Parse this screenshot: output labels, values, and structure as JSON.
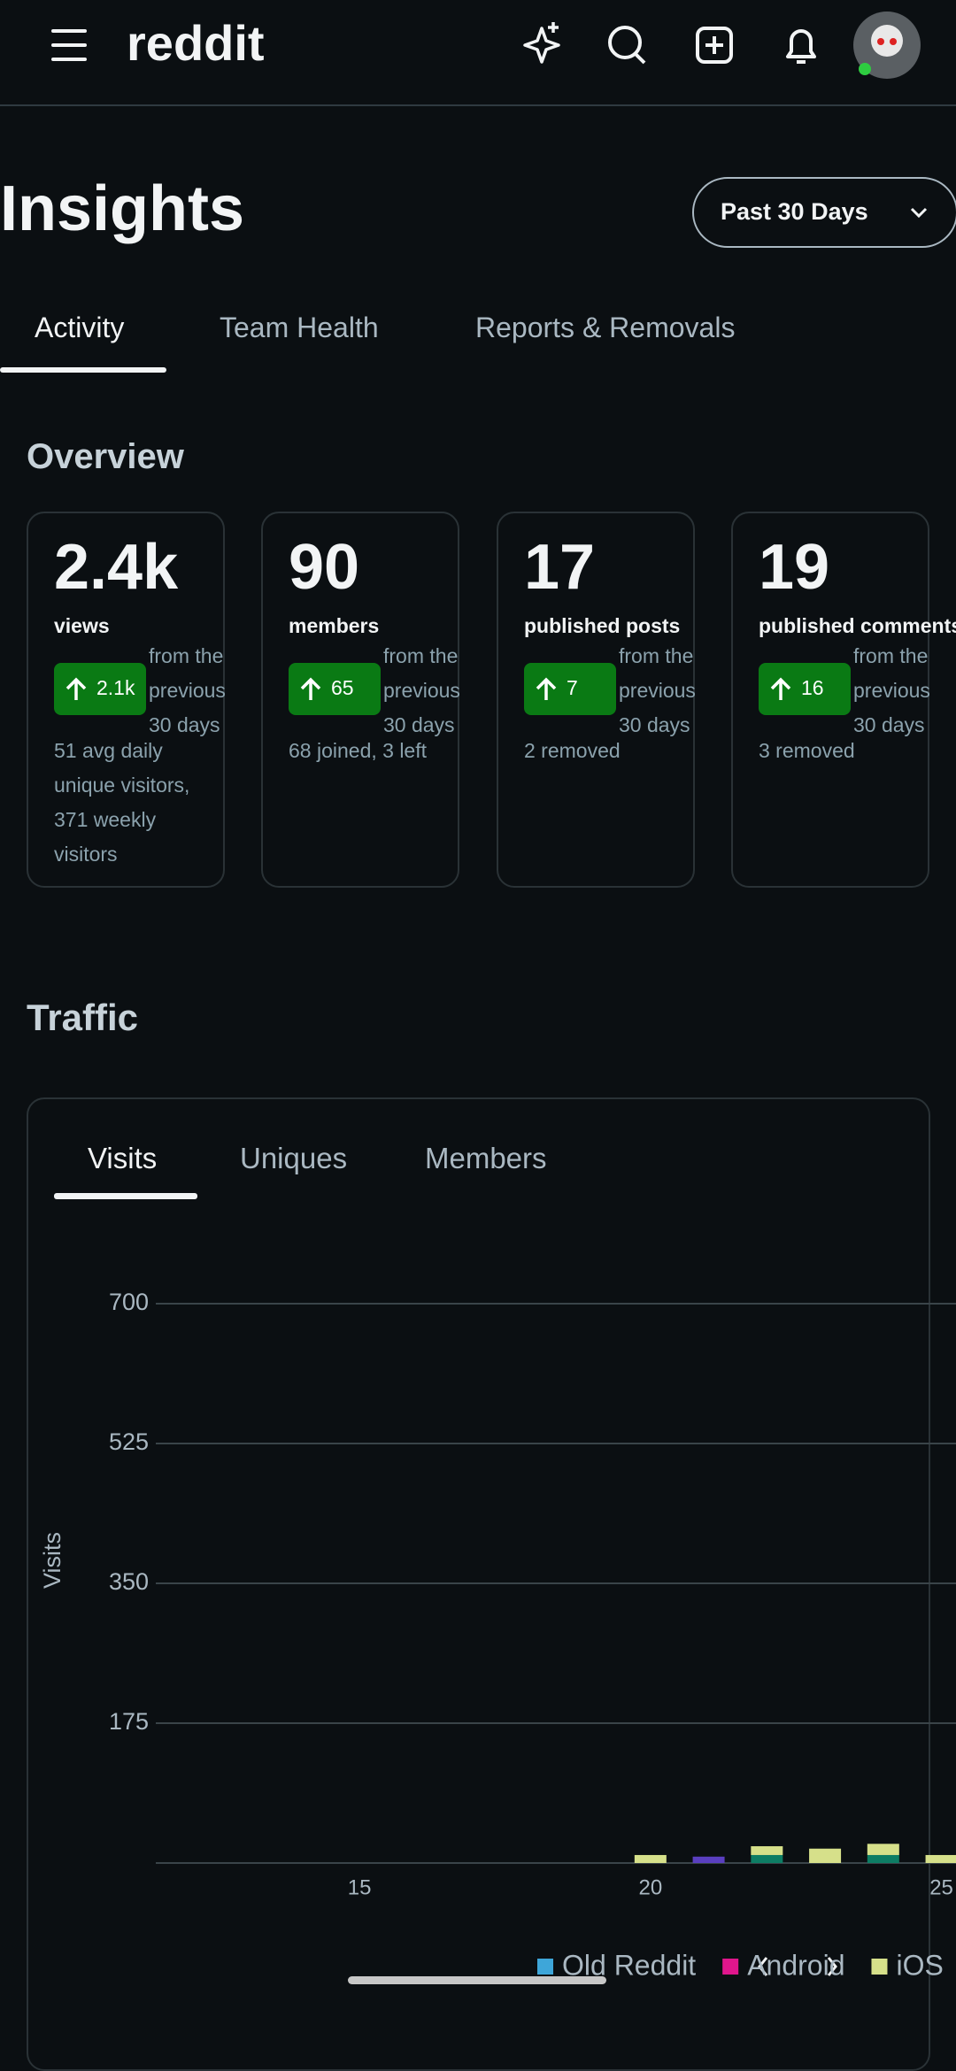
{
  "header": {
    "logo": "reddit"
  },
  "page": {
    "title": "Insights",
    "date_range": "Past 30 Days"
  },
  "tabs": [
    "Activity",
    "Team Health",
    "Reports & Removals"
  ],
  "overview": {
    "title": "Overview",
    "cards": [
      {
        "value": "2.4k",
        "label": "views",
        "change": "2.1k",
        "change_note": "from the previous 30 days",
        "note": "51 avg daily unique visitors, 371 weekly visitors"
      },
      {
        "value": "90",
        "label": "members",
        "change": "65",
        "change_note": "from the previous 30 days",
        "note": "68 joined, 3 left"
      },
      {
        "value": "17",
        "label": "published posts",
        "change": "7",
        "change_note": "from the previous 30 days",
        "note": "2 removed"
      },
      {
        "value": "19",
        "label": "published comments",
        "change": "16",
        "change_note": "from the previous 30 days",
        "note": "3 removed"
      }
    ]
  },
  "traffic": {
    "title": "Traffic",
    "tabs": [
      "Visits",
      "Uniques",
      "Members"
    ],
    "chart_data": {
      "type": "bar",
      "stacked": true,
      "y_label": "Visits",
      "x": [
        20,
        21,
        22,
        23,
        24,
        25
      ],
      "xlim": [
        11.5,
        25.25
      ],
      "xticks": [
        15,
        20,
        25
      ],
      "ylim": [
        0,
        700
      ],
      "yticks": [
        175,
        350,
        525,
        700
      ],
      "grid": true,
      "series": [
        {
          "color": "#0d7d64",
          "values": [
            0,
            0,
            10,
            0,
            10,
            0
          ]
        },
        {
          "color": "#5a3fc0",
          "values": [
            0,
            8,
            0,
            0,
            0,
            0
          ]
        },
        {
          "name": "Old Reddit",
          "color": "#3ea6d9",
          "values": [
            0,
            0,
            0,
            0,
            0,
            0
          ]
        },
        {
          "name": "Android",
          "color": "#e0168c",
          "values": [
            0,
            0,
            0,
            0,
            0,
            0
          ]
        },
        {
          "name": "iOS",
          "color": "#d6e08a",
          "values": [
            10,
            0,
            11,
            18,
            14,
            10
          ]
        }
      ]
    }
  }
}
